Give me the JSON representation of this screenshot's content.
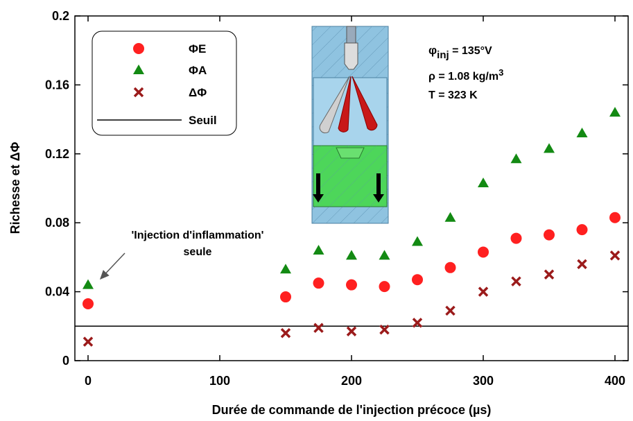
{
  "chart_data": {
    "type": "scatter",
    "xlabel": "Durée de commande de l'injection précoce (µs)",
    "ylabel": "Richesse et ΔΦ",
    "xlim": [
      -10,
      410
    ],
    "ylim": [
      0,
      0.2
    ],
    "xticks": [
      0,
      100,
      200,
      300,
      400
    ],
    "yticks": [
      0,
      0.04,
      0.08,
      0.12,
      0.16,
      0.2
    ],
    "x": [
      0,
      150,
      175,
      200,
      225,
      250,
      275,
      300,
      325,
      350,
      375,
      400
    ],
    "series": [
      {
        "name": "ΦE",
        "color": "#ff2020",
        "marker": "circle",
        "values": [
          0.033,
          0.037,
          0.045,
          0.044,
          0.043,
          0.047,
          0.054,
          0.063,
          0.071,
          0.073,
          0.076,
          0.083
        ]
      },
      {
        "name": "ΦA",
        "color": "#138a13",
        "marker": "triangle",
        "values": [
          0.044,
          0.053,
          0.064,
          0.061,
          0.061,
          0.069,
          0.083,
          0.103,
          0.117,
          0.123,
          0.132,
          0.144
        ]
      },
      {
        "name": "ΔΦ",
        "color": "#9b1b1b",
        "marker": "cross",
        "values": [
          0.011,
          0.016,
          0.019,
          0.017,
          0.018,
          0.022,
          0.029,
          0.04,
          0.046,
          0.05,
          0.056,
          0.061
        ]
      }
    ],
    "threshold": {
      "name": "Seuil",
      "value": 0.02,
      "color": "#000000"
    },
    "annotation": [
      "'Injection d'inflammation'",
      "seule"
    ],
    "inset": {
      "phi": "φ",
      "phi_sub": "inj",
      "phi_rest": " = 135°V",
      "rho": "ρ = 1.08 kg/m",
      "rho_sup": "3",
      "temp": "T = 323 K"
    }
  }
}
